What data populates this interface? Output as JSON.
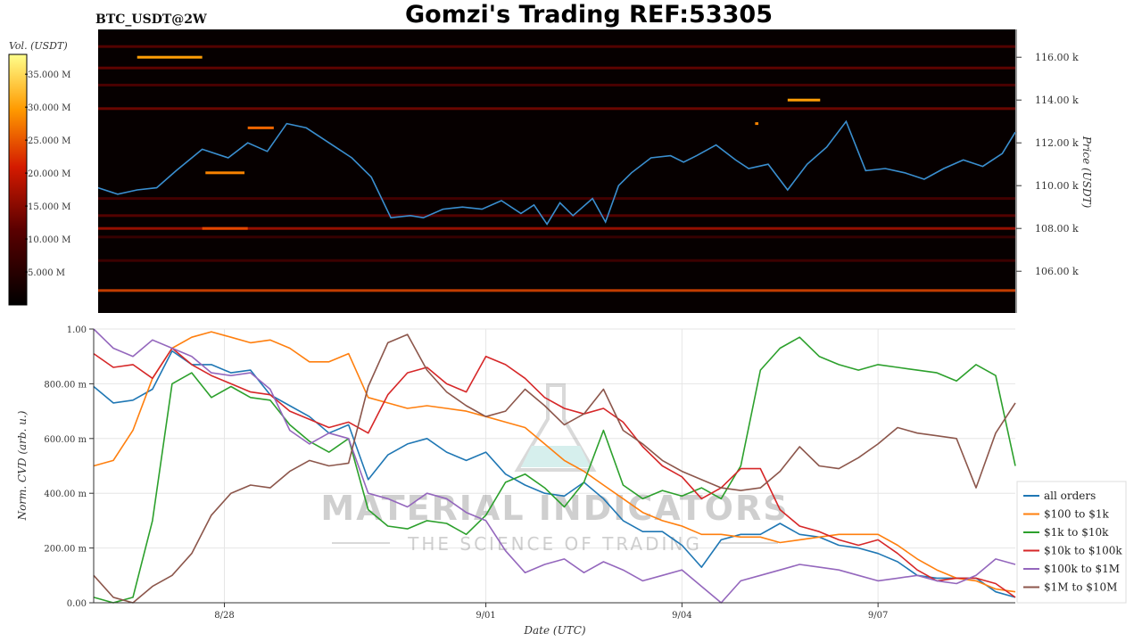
{
  "header": {
    "symbol": "BTC_USDT@2W",
    "title": "Gomzi's Trading REF:53305"
  },
  "colorbar": {
    "label": "Vol. (USDT)",
    "ticks": [
      "5.000 M",
      "10.000 M",
      "15.000 M",
      "20.000 M",
      "25.000 M",
      "30.000 M",
      "35.000 M"
    ],
    "tick_values": [
      5,
      10,
      15,
      20,
      25,
      30,
      35
    ],
    "max": 38
  },
  "watermark": {
    "line1": "MATERIAL INDICATORS",
    "line2": "THE SCIENCE OF TRADING"
  },
  "colors": {
    "price": "#3a8fd0",
    "all_orders": "#1f77b4",
    "100_1k": "#ff7f0e",
    "1k_10k": "#2ca02c",
    "10k_100k": "#d62728",
    "100k_1m": "#9467bd",
    "1m_10m": "#8c564b"
  },
  "chart_data": [
    {
      "type": "heatmap",
      "title": "Gomzi's Trading REF:53305",
      "ylabel": "Price (USDT)",
      "ylim": [
        104.05,
        117.3
      ],
      "yticks": [
        106,
        108,
        110,
        112,
        114,
        116
      ],
      "ytick_labels": [
        "106.00 k",
        "108.00 k",
        "110.00 k",
        "112.00 k",
        "114.00 k",
        "116.00 k"
      ],
      "x_days": [
        0,
        14.1
      ],
      "price_series": {
        "x": [
          0,
          0.3,
          0.6,
          0.9,
          1.2,
          1.6,
          2.0,
          2.3,
          2.6,
          2.9,
          3.2,
          3.5,
          3.9,
          4.2,
          4.5,
          4.8,
          5.0,
          5.3,
          5.6,
          5.9,
          6.2,
          6.5,
          6.7,
          6.9,
          7.1,
          7.3,
          7.6,
          7.8,
          8.0,
          8.2,
          8.5,
          8.8,
          9.0,
          9.2,
          9.5,
          9.8,
          10.0,
          10.3,
          10.6,
          10.9,
          11.2,
          11.5,
          11.8,
          12.1,
          12.4,
          12.7,
          13.0,
          13.3,
          13.6,
          13.9,
          14.1
        ],
        "y": [
          109.9,
          109.6,
          109.8,
          109.9,
          110.7,
          111.7,
          111.3,
          112.0,
          111.6,
          112.9,
          112.7,
          112.1,
          111.3,
          110.4,
          108.5,
          108.6,
          108.5,
          108.9,
          109.0,
          108.9,
          109.3,
          108.7,
          109.1,
          108.2,
          109.2,
          108.6,
          109.4,
          108.3,
          110.0,
          110.6,
          111.3,
          111.4,
          111.1,
          111.4,
          111.9,
          111.2,
          110.8,
          111.0,
          109.8,
          111.0,
          111.8,
          113.0,
          110.7,
          110.8,
          110.6,
          110.3,
          110.8,
          111.2,
          110.9,
          111.5,
          112.5
        ]
      },
      "liquidity_bands": [
        {
          "price": 105.1,
          "volume": 24
        },
        {
          "price": 108.0,
          "volume": 18
        },
        {
          "price": 108.6,
          "volume": 12
        },
        {
          "price": 109.4,
          "volume": 10
        },
        {
          "price": 113.6,
          "volume": 14
        },
        {
          "price": 114.7,
          "volume": 11
        },
        {
          "price": 115.5,
          "volume": 13
        },
        {
          "price": 116.5,
          "volume": 12
        },
        {
          "price": 106.5,
          "volume": 9
        },
        {
          "price": 107.6,
          "volume": 8
        }
      ],
      "highlights": [
        {
          "x0": 0.6,
          "x1": 1.6,
          "price": 116.0,
          "volume": 30
        },
        {
          "x0": 1.65,
          "x1": 2.25,
          "price": 110.6,
          "volume": 28
        },
        {
          "x0": 10.6,
          "x1": 11.1,
          "price": 114.0,
          "volume": 30
        },
        {
          "x0": 1.6,
          "x1": 2.3,
          "price": 108.0,
          "volume": 24
        },
        {
          "x0": 2.3,
          "x1": 2.7,
          "price": 112.7,
          "volume": 26
        },
        {
          "x0": 10.1,
          "x1": 10.15,
          "price": 112.9,
          "volume": 28
        }
      ]
    },
    {
      "type": "line",
      "xlabel": "Date (UTC)",
      "ylabel": "Norm. CVD (arb. u.)",
      "ylim": [
        0,
        1
      ],
      "yticks": [
        0,
        0.2,
        0.4,
        0.6,
        0.8,
        1.0
      ],
      "ytick_labels": [
        "0.00",
        "200.00 m",
        "400.00 m",
        "600.00 m",
        "800.00 m",
        "1.00"
      ],
      "x_days": [
        0,
        14.1
      ],
      "xticks": [
        2,
        6,
        9,
        12
      ],
      "xtick_labels": [
        "8/28",
        "9/01",
        "9/04",
        "9/07"
      ],
      "legend_position": "right",
      "x": [
        0,
        0.3,
        0.6,
        0.9,
        1.2,
        1.5,
        1.8,
        2.1,
        2.4,
        2.7,
        3.0,
        3.3,
        3.6,
        3.9,
        4.2,
        4.5,
        4.8,
        5.1,
        5.4,
        5.7,
        6.0,
        6.3,
        6.6,
        6.9,
        7.2,
        7.5,
        7.8,
        8.1,
        8.4,
        8.7,
        9.0,
        9.3,
        9.6,
        9.9,
        10.2,
        10.5,
        10.8,
        11.1,
        11.4,
        11.7,
        12.0,
        12.3,
        12.6,
        12.9,
        13.2,
        13.5,
        13.8,
        14.1
      ],
      "series": [
        {
          "name": "all orders",
          "values": [
            0.79,
            0.73,
            0.74,
            0.78,
            0.92,
            0.87,
            0.87,
            0.84,
            0.85,
            0.76,
            0.72,
            0.68,
            0.62,
            0.65,
            0.45,
            0.54,
            0.58,
            0.6,
            0.55,
            0.52,
            0.55,
            0.47,
            0.43,
            0.4,
            0.39,
            0.44,
            0.38,
            0.3,
            0.26,
            0.26,
            0.21,
            0.13,
            0.23,
            0.25,
            0.25,
            0.29,
            0.25,
            0.24,
            0.21,
            0.2,
            0.18,
            0.15,
            0.1,
            0.09,
            0.09,
            0.09,
            0.04,
            0.02
          ]
        },
        {
          "name": "$100 to $1k",
          "values": [
            0.5,
            0.52,
            0.63,
            0.82,
            0.93,
            0.97,
            0.99,
            0.97,
            0.95,
            0.96,
            0.93,
            0.88,
            0.88,
            0.91,
            0.75,
            0.73,
            0.71,
            0.72,
            0.71,
            0.7,
            0.68,
            0.66,
            0.64,
            0.58,
            0.52,
            0.48,
            0.43,
            0.38,
            0.33,
            0.3,
            0.28,
            0.25,
            0.25,
            0.24,
            0.24,
            0.22,
            0.23,
            0.24,
            0.25,
            0.25,
            0.25,
            0.21,
            0.16,
            0.12,
            0.09,
            0.08,
            0.05,
            0.04
          ]
        },
        {
          "name": "$1k to $10k",
          "values": [
            0.02,
            0.0,
            0.02,
            0.3,
            0.8,
            0.84,
            0.75,
            0.79,
            0.75,
            0.74,
            0.65,
            0.59,
            0.55,
            0.6,
            0.34,
            0.28,
            0.27,
            0.3,
            0.29,
            0.25,
            0.32,
            0.44,
            0.47,
            0.42,
            0.35,
            0.44,
            0.63,
            0.43,
            0.38,
            0.41,
            0.39,
            0.42,
            0.38,
            0.5,
            0.85,
            0.93,
            0.97,
            0.9,
            0.87,
            0.85,
            0.87,
            0.86,
            0.85,
            0.84,
            0.81,
            0.87,
            0.83,
            0.5
          ]
        },
        {
          "name": "$10k to $100k",
          "values": [
            0.91,
            0.86,
            0.87,
            0.82,
            0.93,
            0.87,
            0.83,
            0.8,
            0.77,
            0.76,
            0.7,
            0.67,
            0.64,
            0.66,
            0.62,
            0.76,
            0.84,
            0.86,
            0.8,
            0.77,
            0.9,
            0.87,
            0.82,
            0.75,
            0.71,
            0.69,
            0.71,
            0.66,
            0.57,
            0.5,
            0.46,
            0.38,
            0.42,
            0.49,
            0.49,
            0.34,
            0.28,
            0.26,
            0.23,
            0.21,
            0.23,
            0.18,
            0.12,
            0.08,
            0.09,
            0.09,
            0.07,
            0.02
          ]
        },
        {
          "name": "$100k to $1M",
          "values": [
            1.0,
            0.93,
            0.9,
            0.96,
            0.93,
            0.9,
            0.84,
            0.83,
            0.84,
            0.78,
            0.63,
            0.58,
            0.62,
            0.6,
            0.4,
            0.38,
            0.35,
            0.4,
            0.38,
            0.33,
            0.3,
            0.19,
            0.11,
            0.14,
            0.16,
            0.11,
            0.15,
            0.12,
            0.08,
            0.1,
            0.12,
            0.06,
            0.0,
            0.08,
            0.1,
            0.12,
            0.14,
            0.13,
            0.12,
            0.1,
            0.08,
            0.09,
            0.1,
            0.08,
            0.07,
            0.1,
            0.16,
            0.14
          ]
        },
        {
          "name": "$1M to $10M",
          "values": [
            0.1,
            0.02,
            0.0,
            0.06,
            0.1,
            0.18,
            0.32,
            0.4,
            0.43,
            0.42,
            0.48,
            0.52,
            0.5,
            0.51,
            0.79,
            0.95,
            0.98,
            0.85,
            0.77,
            0.72,
            0.68,
            0.7,
            0.78,
            0.72,
            0.65,
            0.69,
            0.78,
            0.63,
            0.58,
            0.52,
            0.48,
            0.45,
            0.42,
            0.41,
            0.42,
            0.48,
            0.57,
            0.5,
            0.49,
            0.53,
            0.58,
            0.64,
            0.62,
            0.61,
            0.6,
            0.42,
            0.62,
            0.73
          ]
        }
      ]
    }
  ]
}
